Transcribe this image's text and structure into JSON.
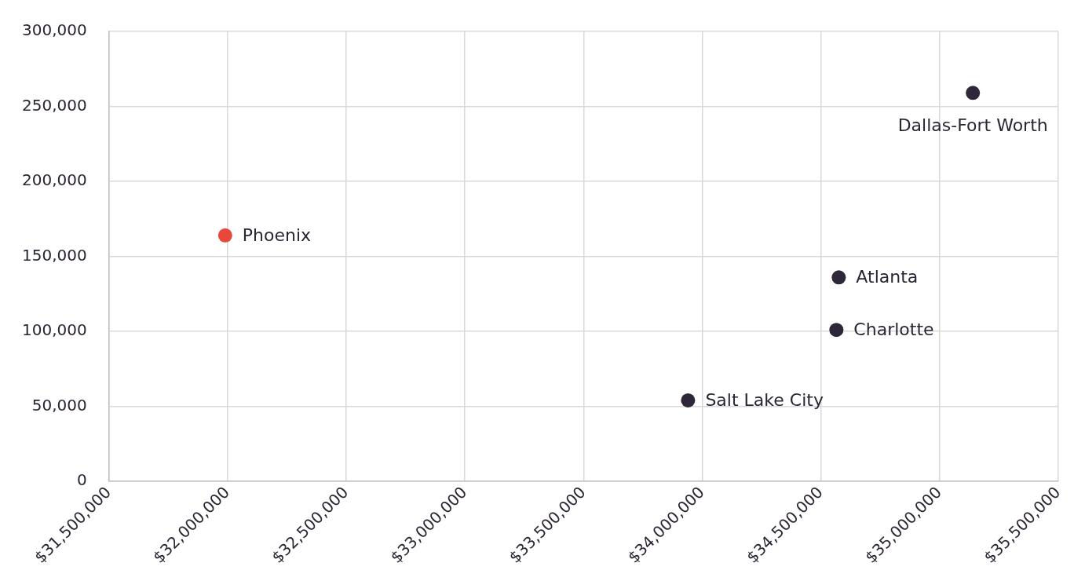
{
  "chart_data": {
    "type": "scatter",
    "xlim": [
      31500000,
      35500000
    ],
    "xticks": [
      {
        "value": 31500000,
        "label": "$31,500,000"
      },
      {
        "value": 32000000,
        "label": "$32,000,000"
      },
      {
        "value": 32500000,
        "label": "$32,500,000"
      },
      {
        "value": 33000000,
        "label": "$33,000,000"
      },
      {
        "value": 33500000,
        "label": "$33,500,000"
      },
      {
        "value": 34000000,
        "label": "$34,000,000"
      },
      {
        "value": 34500000,
        "label": "$34,500,000"
      },
      {
        "value": 35000000,
        "label": "$35,000,000"
      },
      {
        "value": 35500000,
        "label": "$35,500,000"
      }
    ],
    "ylim": [
      0,
      300000
    ],
    "yticks": [
      {
        "value": 0,
        "label": "0"
      },
      {
        "value": 50000,
        "label": "50,000"
      },
      {
        "value": 100000,
        "label": "100,000"
      },
      {
        "value": 150000,
        "label": "150,000"
      },
      {
        "value": 200000,
        "label": "200,000"
      },
      {
        "value": 250000,
        "label": "250,000"
      },
      {
        "value": 300000,
        "label": "300,000"
      }
    ],
    "grid": true,
    "legend": false,
    "marker": "circle",
    "series": [
      {
        "name": "Phoenix",
        "color": "#e8473b",
        "x": [
          31990000
        ],
        "values": [
          164000
        ]
      },
      {
        "name": "Salt Lake City",
        "color": "#2e2639",
        "x": [
          33940000
        ],
        "values": [
          54000
        ]
      },
      {
        "name": "Charlotte",
        "color": "#2e2639",
        "x": [
          34565000
        ],
        "values": [
          101000
        ]
      },
      {
        "name": "Atlanta",
        "color": "#2e2639",
        "x": [
          34575000
        ],
        "values": [
          136000
        ]
      },
      {
        "name": "Dallas-Fort Worth",
        "color": "#2e2639",
        "x": [
          35140000
        ],
        "values": [
          259000
        ]
      }
    ]
  }
}
